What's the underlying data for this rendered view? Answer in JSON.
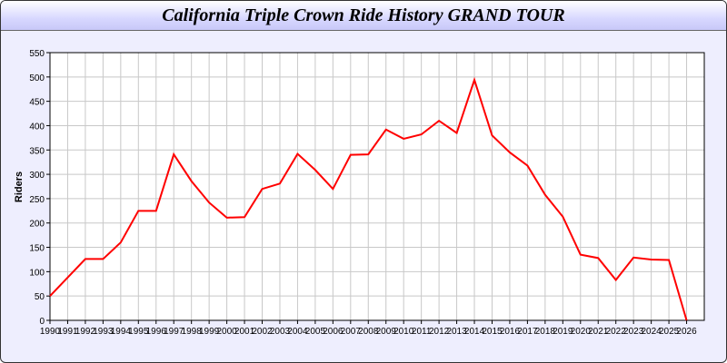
{
  "chart_data": {
    "type": "line",
    "title": "California Triple Crown Ride History GRAND TOUR",
    "xlabel": "",
    "ylabel": "Riders",
    "xlim": [
      1990,
      2027
    ],
    "ylim": [
      0,
      550
    ],
    "yticks": [
      0,
      50,
      100,
      150,
      200,
      250,
      300,
      350,
      400,
      450,
      500,
      550
    ],
    "grid": true,
    "line_color": "#ff0000",
    "x": [
      1990,
      1991,
      1992,
      1993,
      1994,
      1995,
      1996,
      1997,
      1998,
      1999,
      2000,
      2001,
      2002,
      2003,
      2004,
      2005,
      2006,
      2007,
      2008,
      2009,
      2010,
      2011,
      2012,
      2013,
      2014,
      2015,
      2016,
      2017,
      2018,
      2019,
      2020,
      2021,
      2022,
      2023,
      2024,
      2025,
      2026
    ],
    "values": [
      50,
      88,
      126,
      126,
      160,
      225,
      225,
      341,
      286,
      242,
      211,
      212,
      270,
      281,
      342,
      309,
      270,
      340,
      341,
      392,
      373,
      382,
      410,
      385,
      494,
      380,
      345,
      318,
      258,
      213,
      135,
      128,
      83,
      129,
      125,
      124,
      0
    ]
  }
}
